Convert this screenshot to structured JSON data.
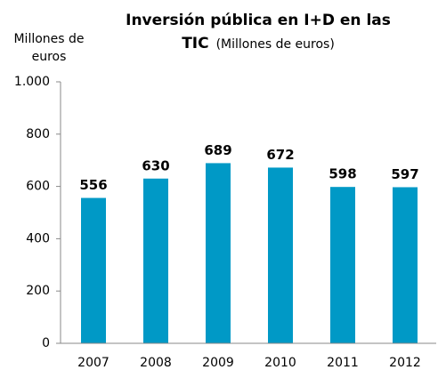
{
  "chart_data": {
    "type": "bar",
    "title": "Inversión pública en I+D en las TIC",
    "subtitle": "(Millones de euros)",
    "y_label": "Millones de euros",
    "categories": [
      "2007",
      "2008",
      "2009",
      "2010",
      "2011",
      "2012"
    ],
    "values": [
      556,
      630,
      689,
      672,
      598,
      597
    ],
    "color": "#0099c6",
    "ylim": [
      0,
      1000
    ],
    "yticks": [
      0,
      200,
      400,
      600,
      800,
      {
        "value": 1000,
        "label": "1.000"
      }
    ],
    "grid": false
  }
}
